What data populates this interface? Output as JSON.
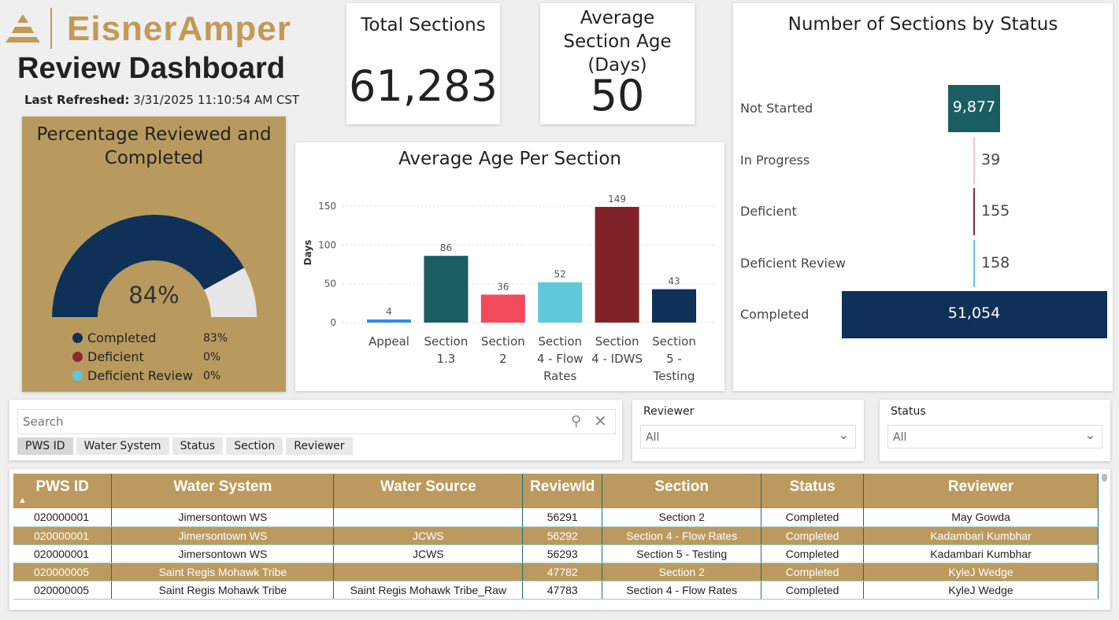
{
  "brand": {
    "logo_text": "EisnerAmper",
    "accent": "#bc9a5f"
  },
  "header": {
    "title": "Review Dashboard",
    "refreshed_label": "Last Refreshed:",
    "refreshed_value": "3/31/2025 11:10:54 AM CST"
  },
  "kpis": [
    {
      "title": "Total Sections",
      "value": "61,283"
    },
    {
      "title": "Average Section Age (Days)",
      "value": "50"
    }
  ],
  "gauge": {
    "title": "Percentage Reviewed and Completed",
    "value_label": "84%",
    "fraction": 0.84,
    "colors": {
      "fill": "#0f3057",
      "track": "#e6e6e6"
    },
    "legend": [
      {
        "label": "Completed",
        "value": "83%",
        "color": "#0f3057"
      },
      {
        "label": "Deficient",
        "value": "0%",
        "color": "#8a2a2e"
      },
      {
        "label": "Deficient Review",
        "value": "0%",
        "color": "#5fc9d9"
      }
    ]
  },
  "chart_data": [
    {
      "type": "bar",
      "title": "Average Age Per Section",
      "xlabel": "",
      "ylabel": "Days",
      "ylim": [
        0,
        160
      ],
      "yticks": [
        0,
        50,
        100,
        150
      ],
      "grid": true,
      "categories": [
        "Appeal",
        "Section 1.3",
        "Section 2",
        "Section 4 - Flow Rates",
        "Section 4 - IDWS",
        "Section 5 - Testing"
      ],
      "category_lines": [
        [
          "Appeal"
        ],
        [
          "Section",
          "1.3"
        ],
        [
          "Section",
          "2"
        ],
        [
          "Section",
          "4 - Flow",
          "Rates"
        ],
        [
          "Section",
          "4 - IDWS"
        ],
        [
          "Section",
          "5 -",
          "Testing"
        ]
      ],
      "values": [
        4,
        86,
        36,
        52,
        149,
        43
      ],
      "colors": [
        "#2b8cf0",
        "#1a5e63",
        "#f2495c",
        "#5fc9d9",
        "#7f2328",
        "#0f3057"
      ]
    },
    {
      "type": "bar",
      "subtype": "funnel",
      "title": "Number of Sections by Status",
      "categories": [
        "Not Started",
        "In Progress",
        "Deficient",
        "Deficient Review",
        "Completed"
      ],
      "value_labels": [
        "9,877",
        "39",
        "155",
        "158",
        "51,054"
      ],
      "values": [
        9877,
        39,
        155,
        158,
        51054
      ],
      "colors": [
        "#1a5e63",
        "#f2c7c9",
        "#8a2a2e",
        "#5fc9d9",
        "#0f3057"
      ]
    }
  ],
  "search": {
    "placeholder": "Search",
    "chips": [
      "PWS ID",
      "Water System",
      "Status",
      "Section",
      "Reviewer"
    ]
  },
  "filters": [
    {
      "label": "Reviewer",
      "value": "All"
    },
    {
      "label": "Status",
      "value": "All"
    }
  ],
  "table": {
    "columns": [
      "PWS ID",
      "Water System",
      "Water Source",
      "ReviewId",
      "Section",
      "Status",
      "Reviewer"
    ],
    "rows": [
      [
        "020000001",
        "Jimersontown WS",
        "",
        "56291",
        "Section 2",
        "Completed",
        "May Gowda"
      ],
      [
        "020000001",
        "Jimersontown WS",
        "JCWS",
        "56292",
        "Section 4 - Flow Rates",
        "Completed",
        "Kadambari Kumbhar"
      ],
      [
        "020000001",
        "Jimersontown WS",
        "JCWS",
        "56293",
        "Section 5 - Testing",
        "Completed",
        "Kadambari Kumbhar"
      ],
      [
        "020000005",
        "Saint Regis Mohawk Tribe",
        "",
        "47782",
        "Section 2",
        "Completed",
        "KyleJ Wedge"
      ],
      [
        "020000005",
        "Saint Regis Mohawk Tribe",
        "Saint Regis Mohawk Tribe_Raw",
        "47783",
        "Section 4 - Flow Rates",
        "Completed",
        "KyleJ Wedge"
      ]
    ]
  }
}
